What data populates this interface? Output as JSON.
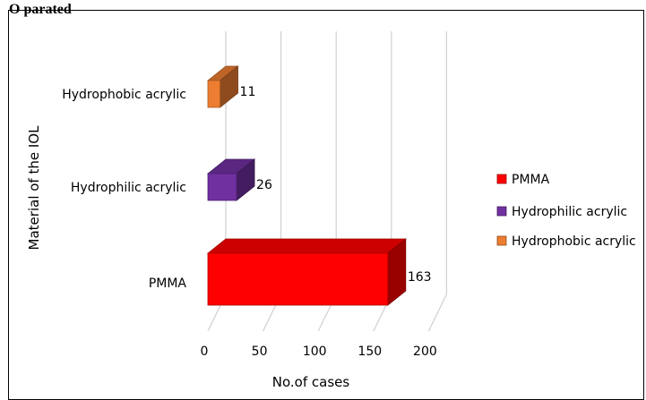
{
  "header": {
    "cut_text": "O       parated"
  },
  "chart_data": {
    "type": "bar",
    "orientation": "horizontal",
    "style": "3d-clustered",
    "categories": [
      "PMMA",
      "Hydrophilic acrylic",
      "Hydrophobic acrylic"
    ],
    "values": [
      163,
      26,
      11
    ],
    "data_labels": [
      "163",
      "26",
      "11"
    ],
    "colors": [
      "#ff0000",
      "#7030a0",
      "#ed7d31"
    ],
    "title": "",
    "xlabel": "No.of cases",
    "ylabel": "Material of the IOL",
    "xlim": [
      0,
      200
    ],
    "x_ticks": [
      "0",
      "50",
      "100",
      "150",
      "200"
    ],
    "grid": true,
    "legend_position": "right",
    "legend": [
      "PMMA",
      "Hydrophilic acrylic",
      "Hydrophobic acrylic"
    ]
  }
}
